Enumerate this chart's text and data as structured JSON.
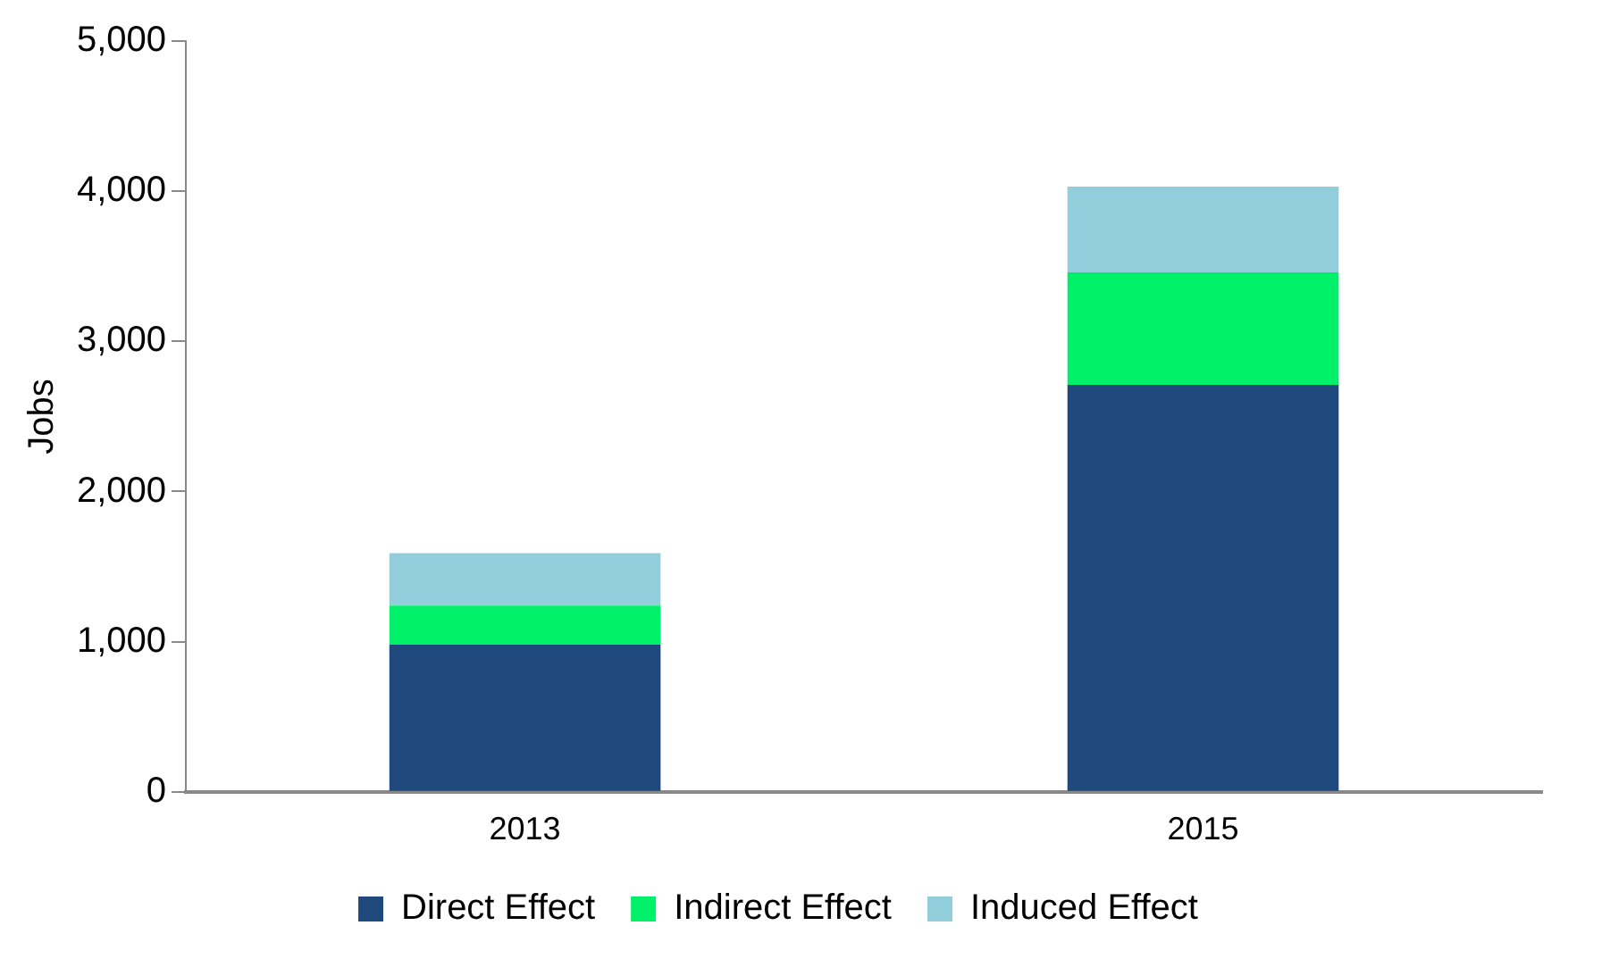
{
  "chart_data": {
    "type": "bar",
    "stacked": true,
    "ylabel": "Jobs",
    "categories": [
      "2013",
      "2015"
    ],
    "series": [
      {
        "name": "Direct Effect",
        "color": "#1f497d",
        "values": [
          980,
          2710
        ]
      },
      {
        "name": "Indirect Effect",
        "color": "#00f06a",
        "values": [
          260,
          750
        ]
      },
      {
        "name": "Induced Effect",
        "color": "#92cddc",
        "values": [
          350,
          570
        ]
      }
    ],
    "ylim": [
      0,
      5000
    ],
    "yticks": [
      {
        "value": 0,
        "label": "0"
      },
      {
        "value": 1000,
        "label": "1,000"
      },
      {
        "value": 2000,
        "label": "2,000"
      },
      {
        "value": 3000,
        "label": "3,000"
      },
      {
        "value": 4000,
        "label": "4,000"
      },
      {
        "value": 5000,
        "label": "5,000"
      }
    ],
    "grid": false,
    "legend": "bottom"
  }
}
